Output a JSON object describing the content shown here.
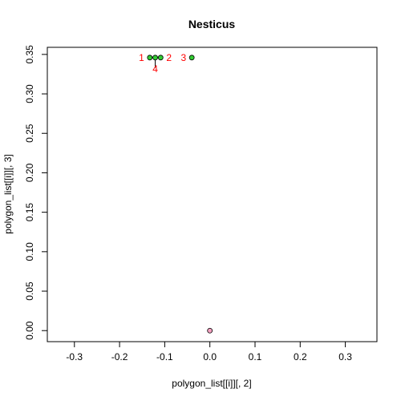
{
  "chart_data": {
    "type": "scatter",
    "title": "Nesticus",
    "xlabel": "polygon_list[[i]][, 2]",
    "ylabel": "polygon_list[[i]][, 3]",
    "xlim": [
      -0.36,
      0.37
    ],
    "ylim": [
      -0.014,
      0.359
    ],
    "x_ticks": [
      -0.3,
      -0.2,
      -0.1,
      0.0,
      0.1,
      0.2,
      0.3
    ],
    "x_tick_labels": [
      "-0.3",
      "-0.2",
      "-0.1",
      "0.0",
      "0.1",
      "0.2",
      "0.3"
    ],
    "y_ticks": [
      0.0,
      0.05,
      0.1,
      0.15,
      0.2,
      0.25,
      0.3,
      0.35
    ],
    "y_tick_labels": [
      "0.00",
      "0.05",
      "0.10",
      "0.15",
      "0.20",
      "0.25",
      "0.30",
      "0.35"
    ],
    "grid": false,
    "series": [
      {
        "color": "#33cc33",
        "points": [
          {
            "x": -0.133,
            "y": 0.346,
            "label": "1",
            "label_side": "left"
          },
          {
            "x": -0.109,
            "y": 0.346,
            "label": "2",
            "label_side": "right"
          },
          {
            "x": -0.04,
            "y": 0.346,
            "label": "3",
            "label_side": "left"
          },
          {
            "x": -0.121,
            "y": 0.346,
            "label": "4",
            "label_side": "below"
          }
        ]
      },
      {
        "color": "#f4a0c0",
        "points": [
          {
            "x": 0.0,
            "y": 0.0,
            "label": "",
            "label_side": ""
          }
        ]
      }
    ],
    "segments": [
      {
        "from": [
          -0.133,
          0.346
        ],
        "to": [
          -0.109,
          0.346
        ]
      },
      {
        "from": [
          -0.121,
          0.346
        ],
        "to": [
          -0.121,
          0.333
        ]
      }
    ],
    "label_color": "#ff0000"
  }
}
